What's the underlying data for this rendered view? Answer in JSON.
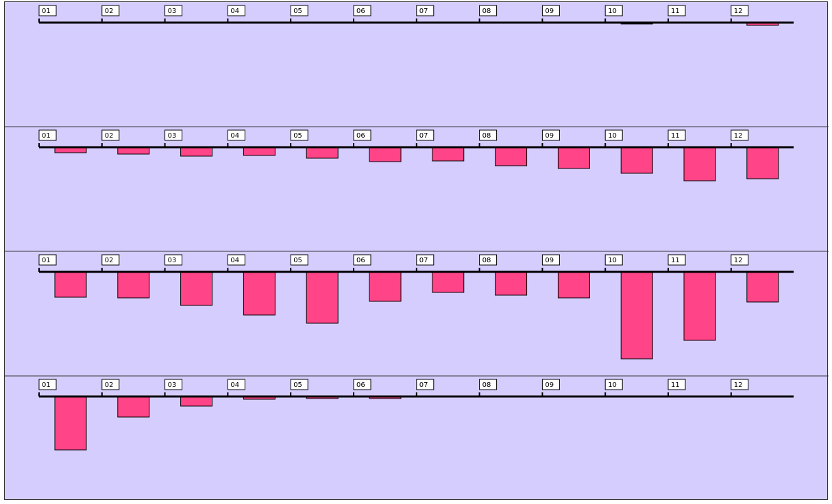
{
  "colors": {
    "background": "#d6cdff",
    "bar": "#ff4488",
    "axis": "#000000"
  },
  "chart_data": {
    "type": "bar",
    "orientation": "downward",
    "panels": 4,
    "categories": [
      "01",
      "02",
      "03",
      "04",
      "05",
      "06",
      "07",
      "08",
      "09",
      "10",
      "11",
      "12"
    ],
    "series": [
      {
        "values": [
          0,
          0,
          0,
          0,
          0,
          0,
          1,
          1,
          1,
          2,
          1,
          4
        ]
      },
      {
        "values": [
          8,
          10,
          13,
          12,
          16,
          21,
          20,
          27,
          31,
          38,
          49,
          46
        ]
      },
      {
        "values": [
          37,
          38,
          49,
          63,
          75,
          43,
          30,
          34,
          38,
          127,
          100,
          44
        ]
      },
      {
        "values": [
          78,
          30,
          14,
          4,
          3,
          3,
          0,
          0,
          0,
          0,
          0,
          0
        ]
      }
    ],
    "xlabel": "",
    "ylabel": "",
    "ylim": [
      0,
      140
    ],
    "grid": false,
    "legend": "none"
  }
}
